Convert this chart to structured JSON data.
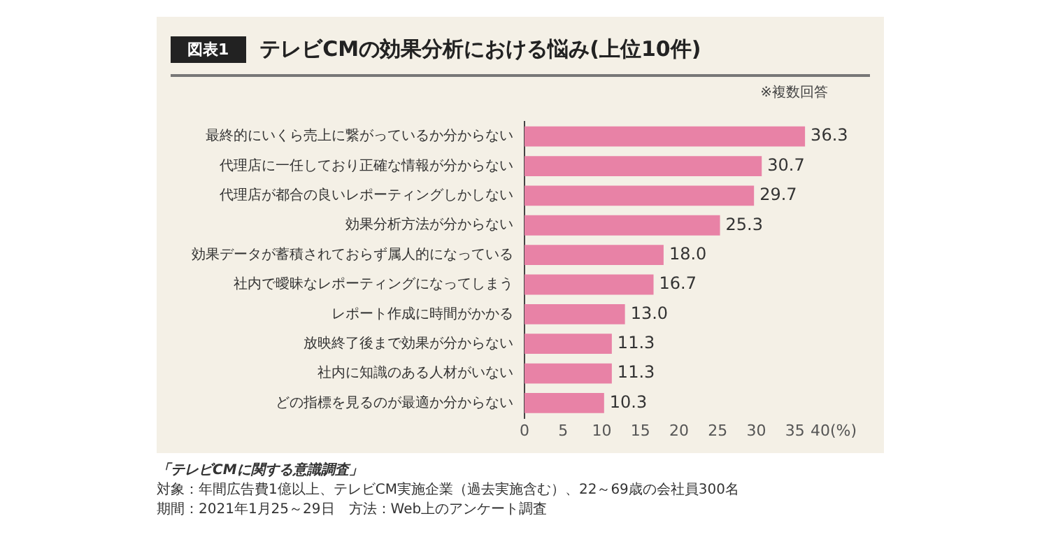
{
  "chart_data": {
    "type": "bar",
    "orientation": "horizontal",
    "subtitle": "図表1",
    "title": "テレビCMの効果分析における悩み(上位10件)",
    "categories": [
      "最終的にいくら売上に繋がっているか分からない",
      "代理店に一任しており正確な情報が分からない",
      "代理店が都合の良いレポーティングしかしない",
      "効果分析方法が分からない",
      "効果データが蓄積されておらず属人的になっている",
      "社内で曖昧なレポーティングになってしまう",
      "レポート作成に時間がかかる",
      "放映終了後まで効果が分からない",
      "社内に知識のある人材がいない",
      "どの指標を見るのが最適か分からない"
    ],
    "values": [
      36.3,
      30.7,
      29.7,
      25.3,
      18.0,
      16.7,
      13.0,
      11.3,
      11.3,
      10.3
    ],
    "value_labels": [
      "36.3",
      "30.7",
      "29.7",
      "25.3",
      "18.0",
      "16.7",
      "13.0",
      "11.3",
      "11.3",
      "10.3"
    ],
    "color": "#e882a6",
    "xlim": [
      0,
      40
    ],
    "xticks": [
      0,
      5,
      10,
      15,
      20,
      25,
      30,
      35,
      {
        "value": 40,
        "label": "40(%)"
      }
    ],
    "grid": false,
    "legend": false,
    "annotations": [
      "※複数回答",
      "「テレビCMに関する意識調査」",
      "対象：年間広告費1億以上、テレビCM実施企業（過去実施含む）、22～69歳の会社員300名",
      "期間：2021年1月25～29日　方法：Web上のアンケート調査"
    ]
  }
}
